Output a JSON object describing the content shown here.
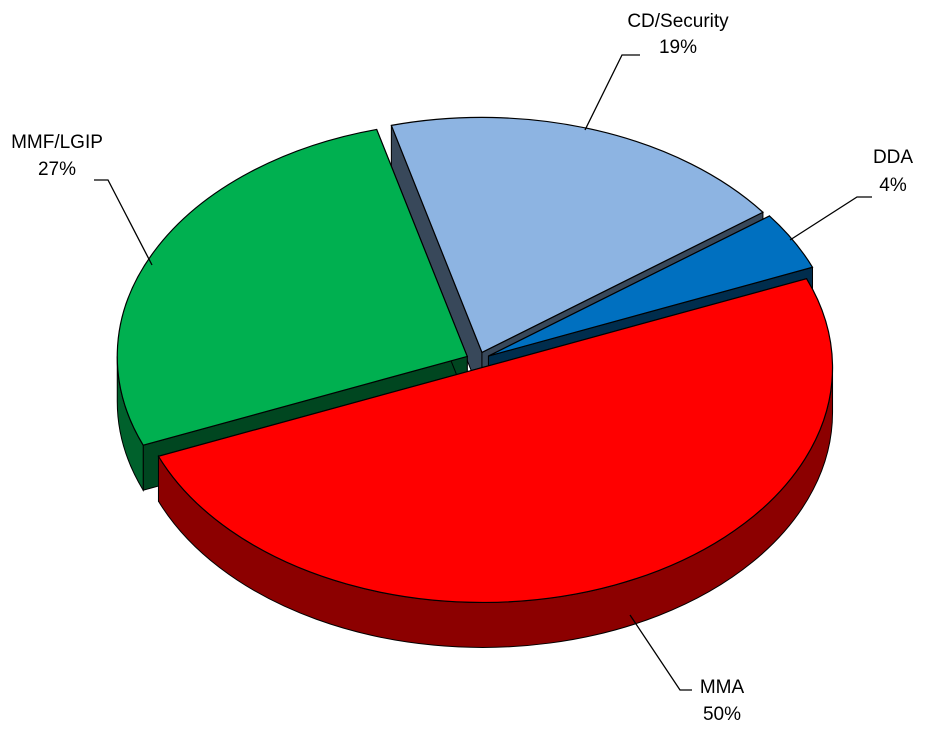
{
  "chart_data": {
    "type": "pie",
    "categories": [
      "CD/Security",
      "DDA",
      "MMA",
      "MMF/LGIP"
    ],
    "values": [
      19,
      4,
      50,
      27
    ],
    "value_labels": [
      "19%",
      "4%",
      "50%",
      "27%"
    ],
    "colors": [
      "#8db4e2",
      "#0070c0",
      "#ff0000",
      "#00b050"
    ]
  }
}
